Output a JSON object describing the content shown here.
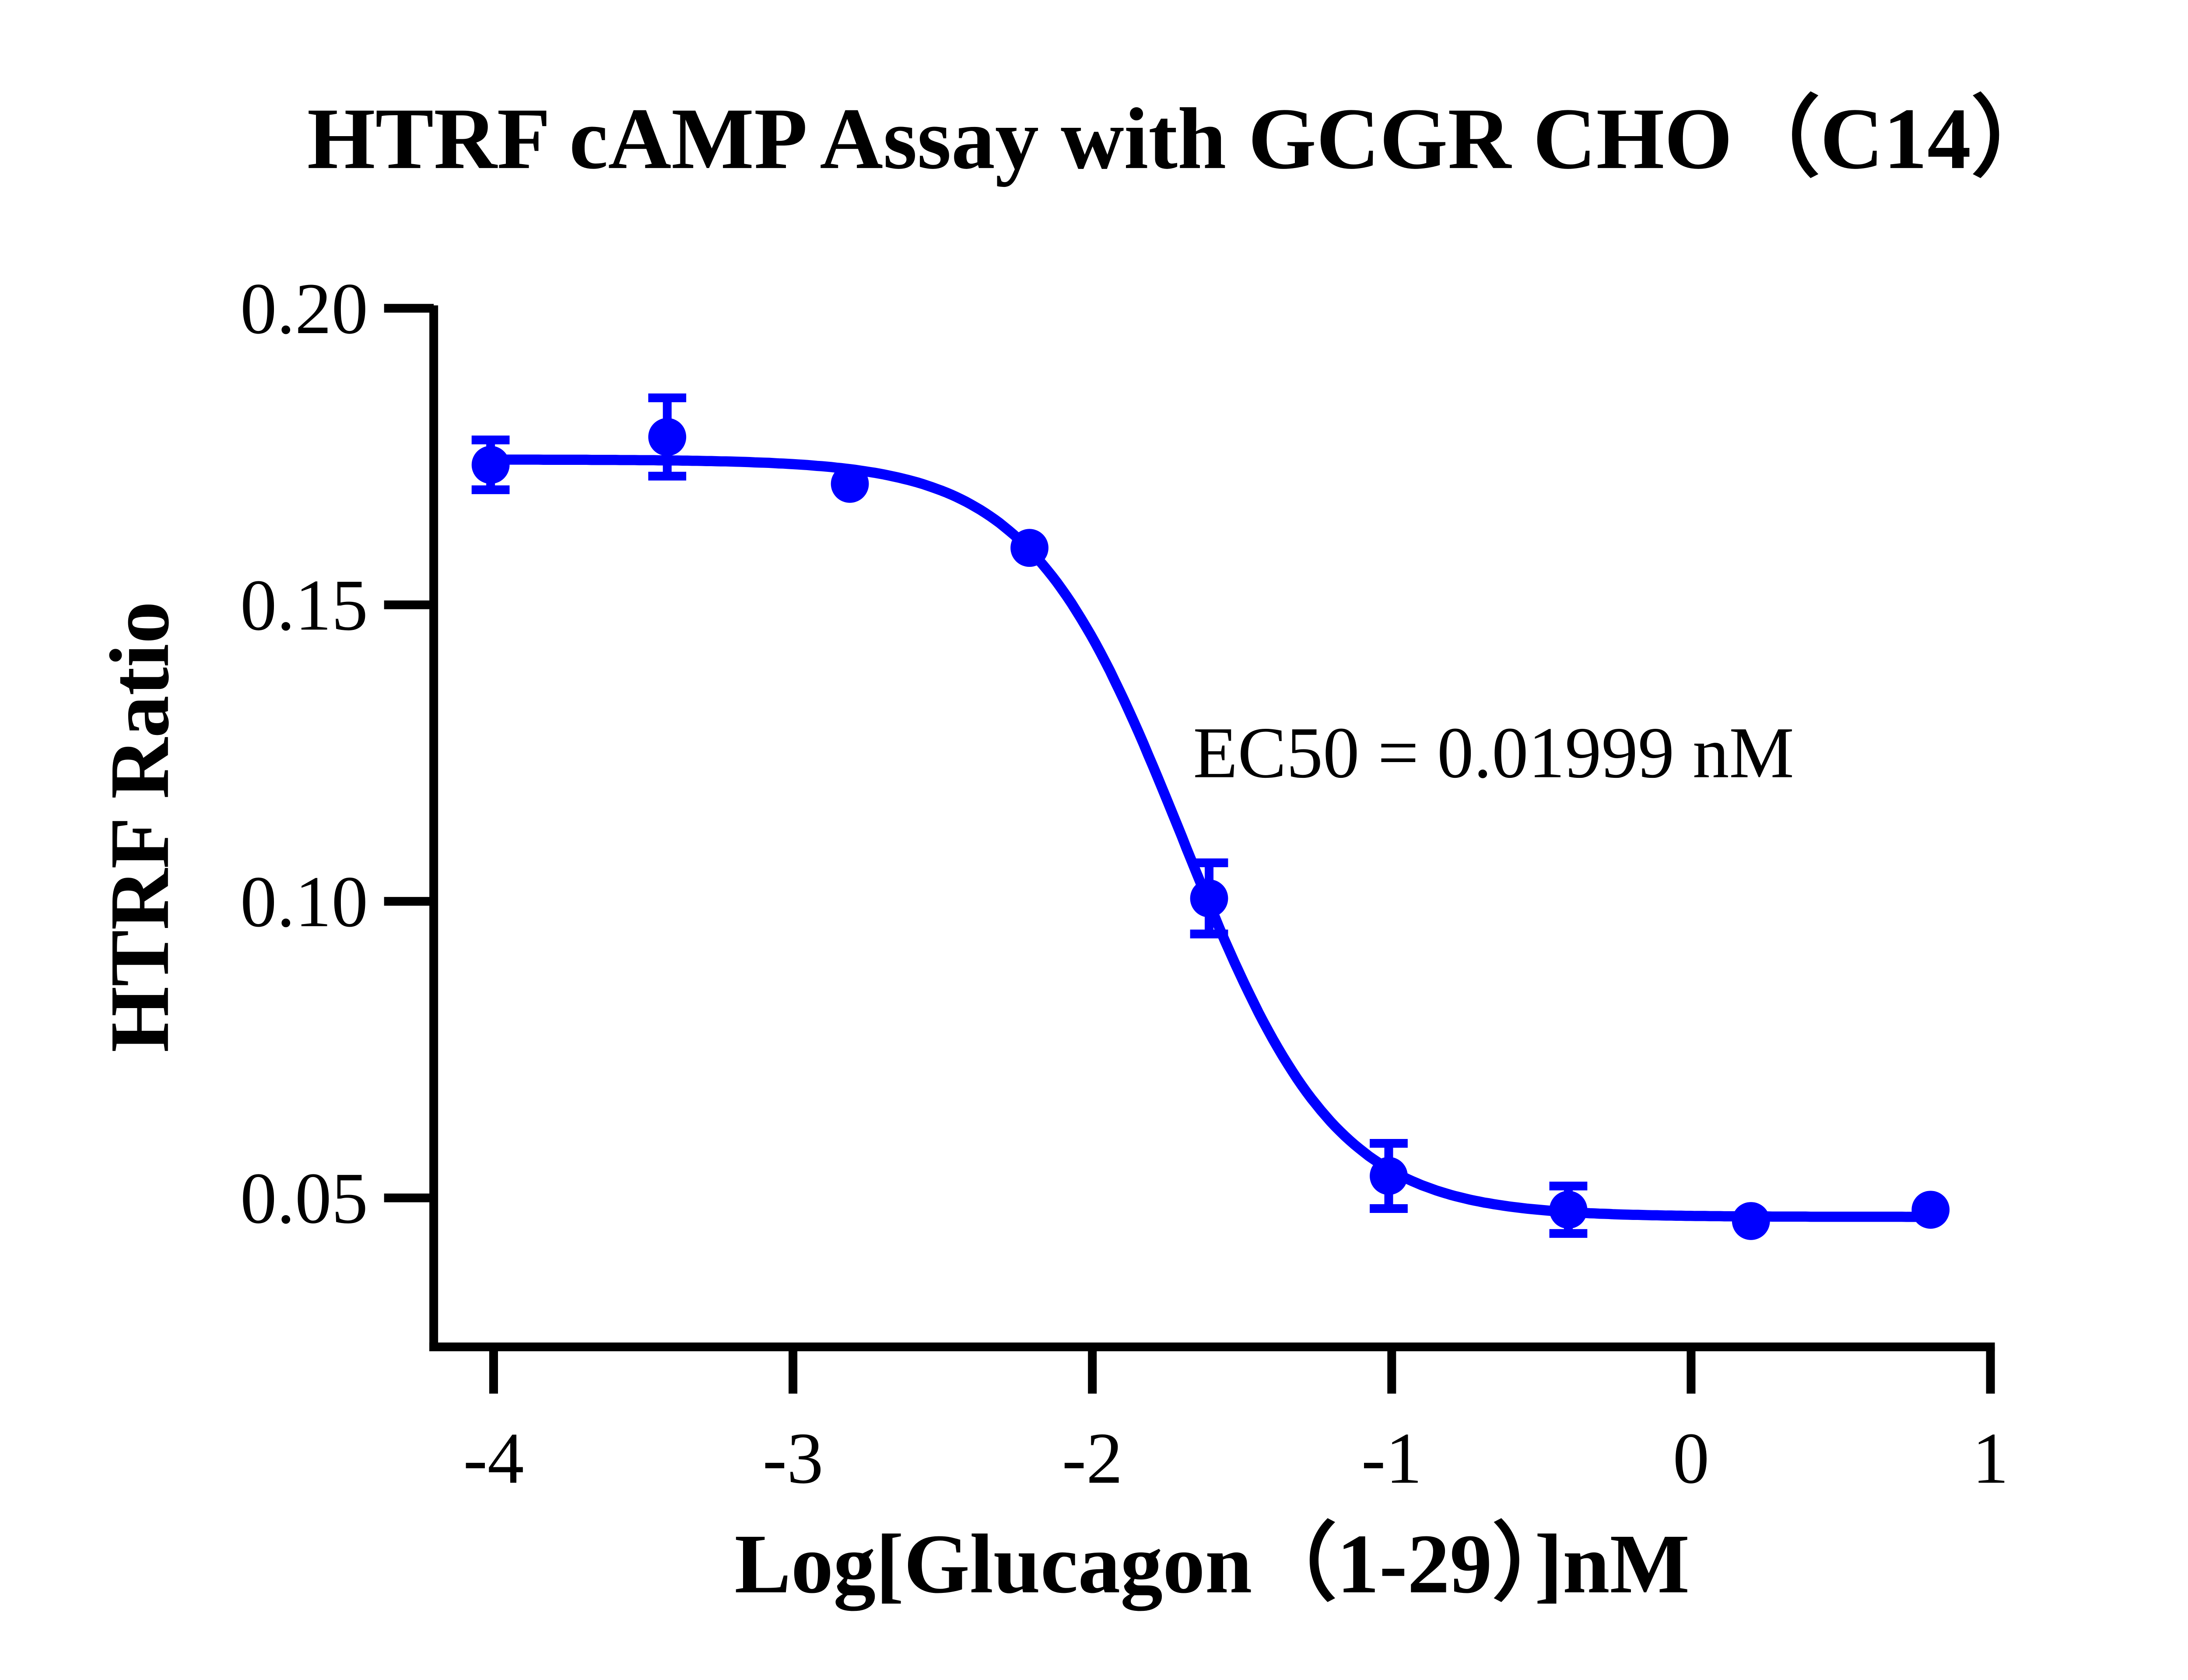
{
  "chart_data": {
    "type": "scatter",
    "title": "HTRF cAMP Assay with GCGR CHO（C14）",
    "xlabel": "Log[Glucagon（1-29）]nM",
    "ylabel": "HTRF Ratio",
    "xlim": [
      -4.2,
      1
    ],
    "ylim": [
      0.025,
      0.2
    ],
    "xticks": [
      -4,
      -3,
      -2,
      -1,
      0,
      1
    ],
    "xtick_labels": [
      "-4",
      "-3",
      "-2",
      "-1",
      "0",
      "1"
    ],
    "yticks": [
      0.05,
      0.1,
      0.15,
      0.2
    ],
    "ytick_labels": [
      "0.05",
      "0.10",
      "0.15",
      "0.20"
    ],
    "grid": false,
    "color": "#0000FF",
    "points": [
      {
        "x": -4.01,
        "y": 0.1736,
        "err": 0.0042
      },
      {
        "x": -3.42,
        "y": 0.1783,
        "err": 0.0066
      },
      {
        "x": -2.81,
        "y": 0.1704,
        "err": 0.0
      },
      {
        "x": -2.21,
        "y": 0.1596,
        "err": 0.0
      },
      {
        "x": -1.61,
        "y": 0.1005,
        "err": 0.006
      },
      {
        "x": -1.01,
        "y": 0.0537,
        "err": 0.0055
      },
      {
        "x": -0.41,
        "y": 0.048,
        "err": 0.004
      },
      {
        "x": 0.2,
        "y": 0.0461,
        "err": 0.0
      },
      {
        "x": 0.8,
        "y": 0.048,
        "err": 0.0
      }
    ],
    "fit": {
      "model": "4PL",
      "top": 0.1745,
      "bottom": 0.0468,
      "logEC50": -1.699,
      "hill": 1.7,
      "x_range": [
        -4.01,
        0.8
      ]
    },
    "annotation": "EC50 = 0.01999 nM"
  }
}
